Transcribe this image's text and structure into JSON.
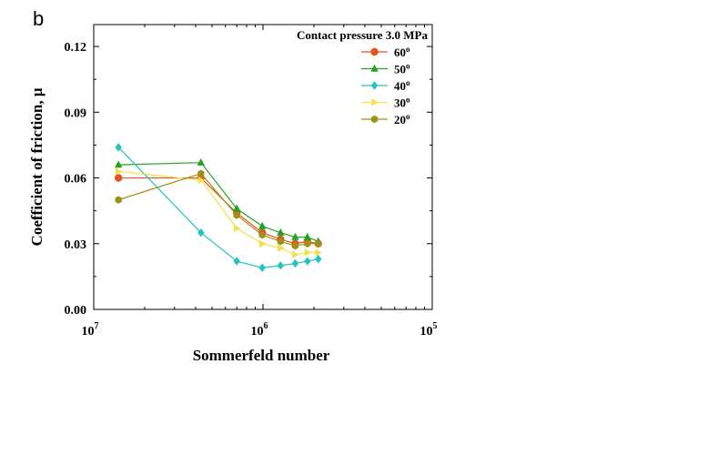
{
  "panel_label": "b",
  "chart_data": {
    "type": "line",
    "x_scale": "log-reversed",
    "xlabel": "Sommerfeld number",
    "ylabel": "Coefficient of friction, μ",
    "xlim": [
      1e-07,
      1e-05
    ],
    "ylim": [
      0,
      0.13
    ],
    "x_ticks": [
      {
        "value": 1e-07,
        "base": "10",
        "exp": "7"
      },
      {
        "value": 1e-06,
        "base": "10",
        "exp": "6"
      },
      {
        "value": 1e-05,
        "base": "10",
        "exp": "5"
      }
    ],
    "y_ticks": [
      {
        "value": 0.0,
        "label": "0.00"
      },
      {
        "value": 0.03,
        "label": "0.03"
      },
      {
        "value": 0.06,
        "label": "0.06"
      },
      {
        "value": 0.09,
        "label": "0.09"
      },
      {
        "value": 0.12,
        "label": "0.12"
      }
    ],
    "legend": {
      "title": "Contact pressure 3.0 MPa",
      "placement": "top-right"
    },
    "series": [
      {
        "name": "60",
        "degree_symbol": "o",
        "color": "#e8501c",
        "marker": "circle",
        "x": [
          1.4e-07,
          4.3e-07,
          7e-07,
          9.9e-07,
          1.27e-06,
          1.55e-06,
          1.83e-06,
          2.12e-06
        ],
        "y": [
          0.06,
          0.06,
          0.044,
          0.035,
          0.032,
          0.03,
          0.031,
          0.03
        ]
      },
      {
        "name": "50",
        "degree_symbol": "o",
        "color": "#22a222",
        "marker": "triangle-up",
        "x": [
          1.4e-07,
          4.3e-07,
          7e-07,
          9.9e-07,
          1.27e-06,
          1.55e-06,
          1.83e-06,
          2.12e-06
        ],
        "y": [
          0.066,
          0.067,
          0.046,
          0.038,
          0.035,
          0.033,
          0.033,
          0.031
        ]
      },
      {
        "name": "40",
        "degree_symbol": "o",
        "color": "#22c4c0",
        "marker": "diamond",
        "x": [
          1.4e-07,
          4.3e-07,
          7e-07,
          9.9e-07,
          1.27e-06,
          1.55e-06,
          1.83e-06,
          2.12e-06
        ],
        "y": [
          0.074,
          0.035,
          0.022,
          0.019,
          0.02,
          0.021,
          0.022,
          0.023
        ]
      },
      {
        "name": "30",
        "degree_symbol": "o",
        "color": "#f5e04a",
        "marker": "triangle-right",
        "x": [
          1.4e-07,
          4.3e-07,
          7e-07,
          9.9e-07,
          1.27e-06,
          1.55e-06,
          1.83e-06,
          2.12e-06
        ],
        "y": [
          0.063,
          0.059,
          0.037,
          0.03,
          0.028,
          0.025,
          0.026,
          0.026
        ]
      },
      {
        "name": "20",
        "degree_symbol": "o",
        "color": "#a09018",
        "marker": "hexagon",
        "x": [
          1.4e-07,
          4.3e-07,
          7e-07,
          9.9e-07,
          1.27e-06,
          1.55e-06,
          1.83e-06,
          2.12e-06
        ],
        "y": [
          0.05,
          0.062,
          0.043,
          0.034,
          0.031,
          0.029,
          0.03,
          0.03
        ]
      }
    ]
  }
}
